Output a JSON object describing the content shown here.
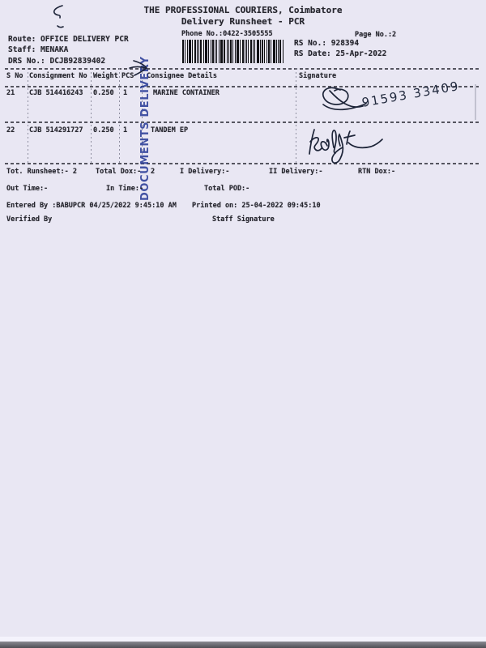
{
  "header": {
    "title": "THE PROFESSIONAL COURIERS, Coimbatore",
    "subtitle": "Delivery Runsheet - PCR",
    "phone": "Phone No.:0422-3505555",
    "page_no": "Page No.:2"
  },
  "info": {
    "route": "Route: OFFICE DELIVERY PCR",
    "staff": "Staff: MENAKA",
    "drs_no": "DRS No.: DCJB92839402",
    "rs_no": "RS No.: 928394",
    "rs_date": "RS Date: 25-Apr-2022"
  },
  "barcode": {
    "value_shown": "",
    "semantic": "drs-barcode"
  },
  "table": {
    "headers": {
      "s_no": "S No",
      "consignment_no": "Consignment No",
      "weight": "Weight",
      "pcs": "PCS",
      "consignee": "Consignee Details",
      "signature": "Signature"
    },
    "rows": [
      {
        "s_no": "21",
        "consignment_no": "CJB 514416243",
        "weight": "0.250",
        "pcs": "1",
        "consignee": "MARINE CONTAINER",
        "signature_note": "91593 33409"
      },
      {
        "s_no": "22",
        "consignment_no": "CJB 514291727",
        "weight": "0.250",
        "pcs": "1",
        "consignee": "TANDEM EP",
        "signature_note": ""
      }
    ]
  },
  "stamp": {
    "text": "DOCUMENTS DELIVERY"
  },
  "totals": {
    "runsheet": "Tot. Runsheet:- 2",
    "total_dox": "Total Dox:-",
    "total_dox_value": "2",
    "i_delivery": "I Delivery:-",
    "ii_delivery": "II Delivery:-",
    "rtn_dox": "RTN Dox:-",
    "out_time": "Out Time:-",
    "in_time": "In Time:-",
    "total_pod": "Total POD:-"
  },
  "footer": {
    "entered_by": "Entered By :BABUPCR 04/25/2022 9:45:10 AM",
    "printed_on": "Printed on: 25-04-2022 09:45:10",
    "verified_by": "Verified By",
    "staff_signature": "Staff Signature"
  },
  "colors": {
    "paper": "#e9e7f3",
    "print_text": "#26262e",
    "stamp_blue": "#2c3e98",
    "pen_ink": "#1d2438",
    "barcode": "#101014",
    "scan_strip": "#4e4e55"
  }
}
